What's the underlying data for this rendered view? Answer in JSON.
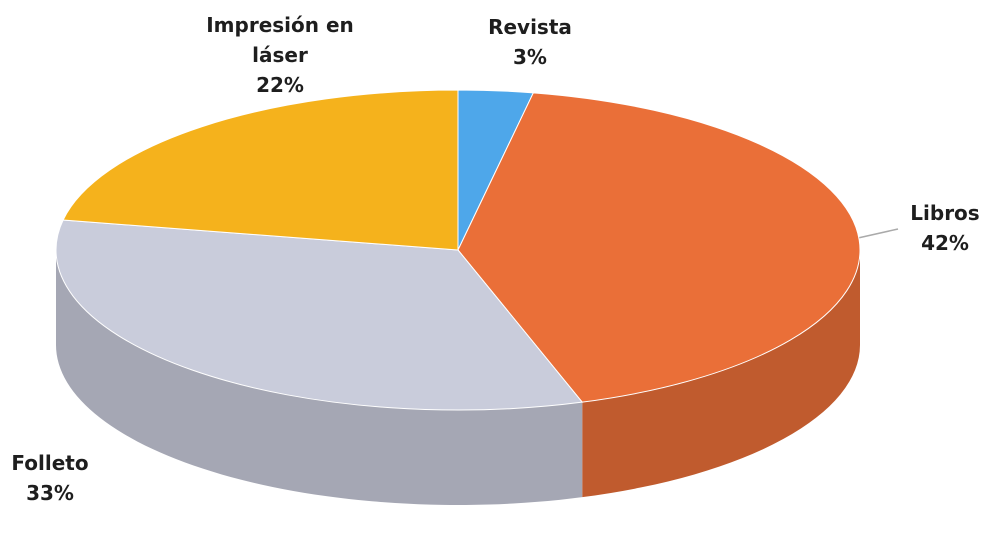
{
  "chart_data": {
    "type": "pie",
    "categories": [
      "Revista",
      "Libros",
      "Folleto",
      "Impresión en láser"
    ],
    "values": [
      3,
      42,
      33,
      22
    ],
    "value_labels": [
      "3%",
      "42%",
      "33%",
      "22%"
    ],
    "colors": [
      "#4ea7ea",
      "#ea6f38",
      "#c9ccdb",
      "#f5b21c"
    ]
  }
}
